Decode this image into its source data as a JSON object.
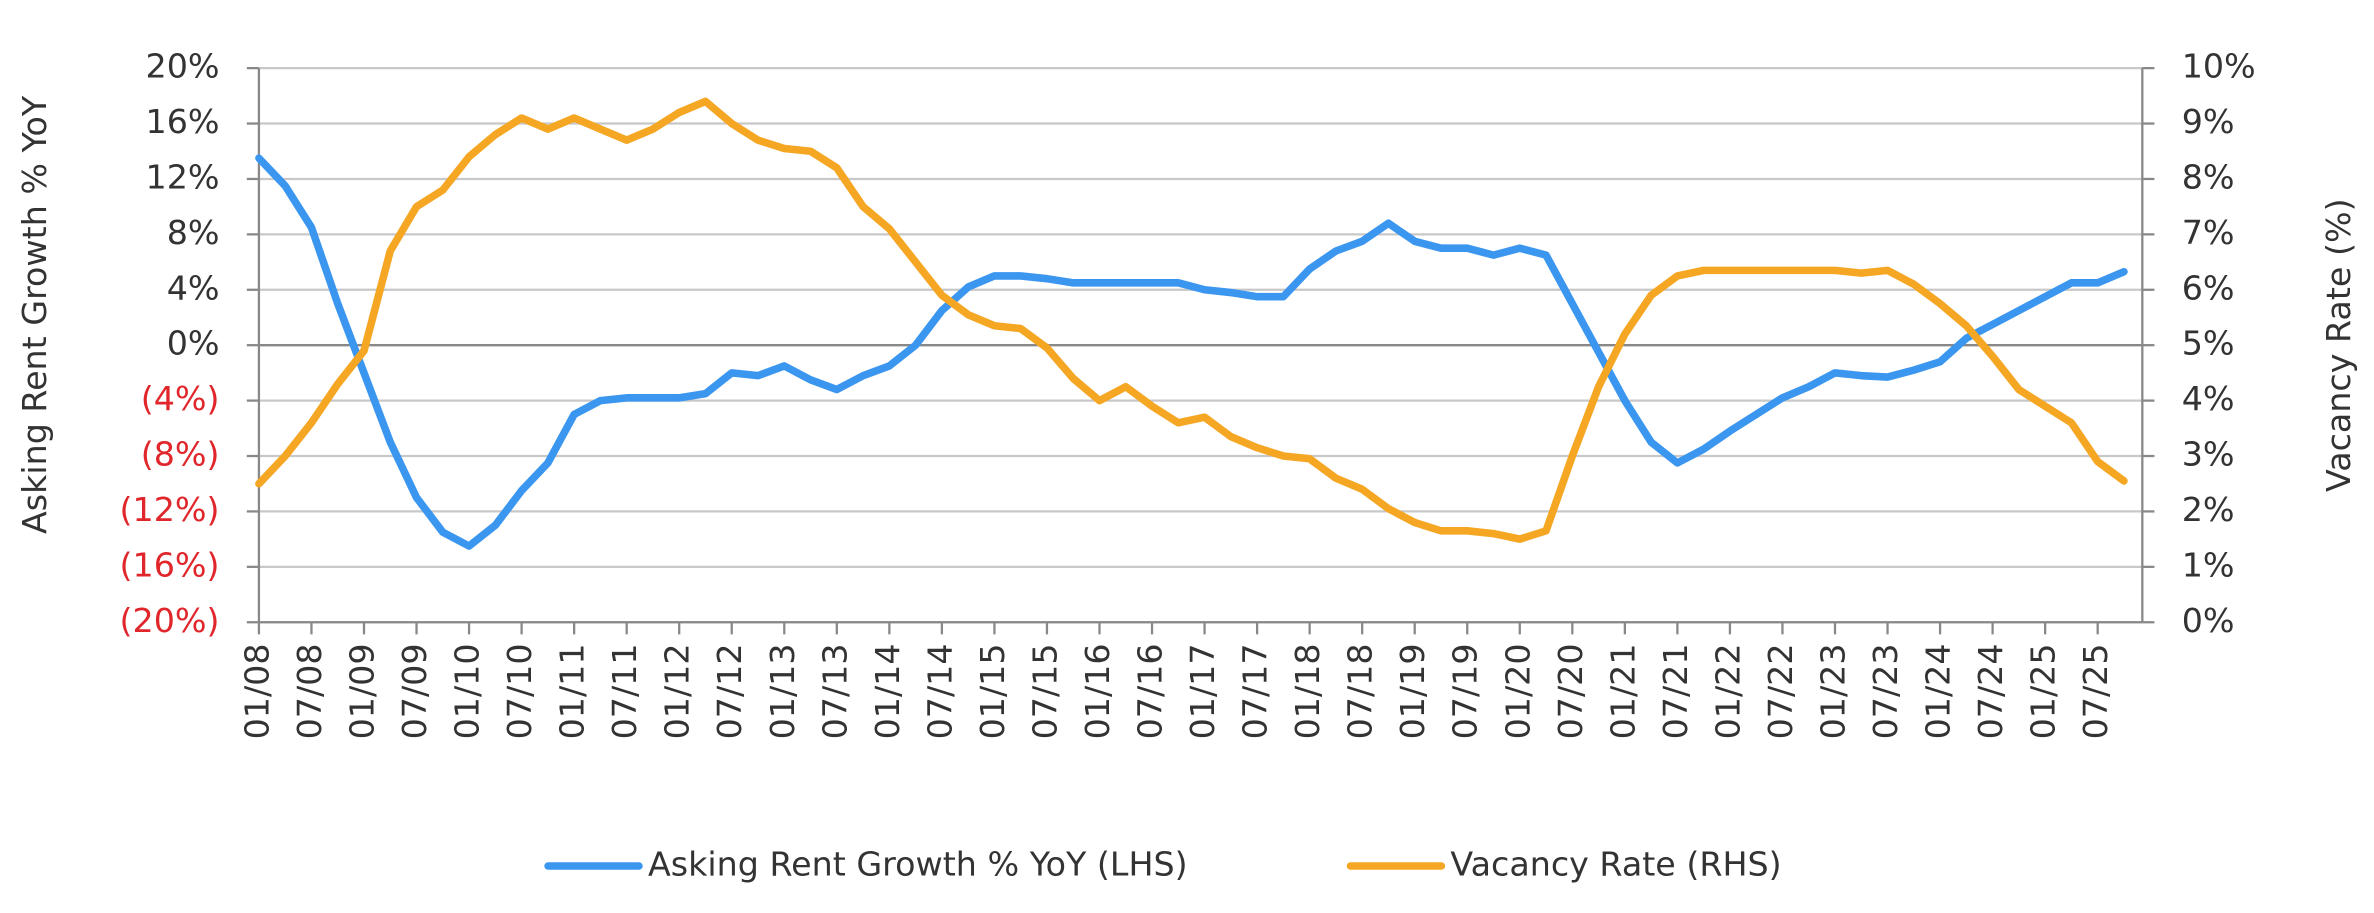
{
  "chart_data": {
    "type": "line",
    "y_label": "Asking Rent Growth % YoY",
    "y2_label": "Vacancy Rate (%)",
    "categories": [
      "01/08",
      null,
      "07/08",
      null,
      "01/09",
      null,
      "07/09",
      null,
      "01/10",
      null,
      "07/10",
      null,
      "01/11",
      null,
      "07/11",
      null,
      "01/12",
      null,
      "07/12",
      null,
      "01/13",
      null,
      "07/13",
      null,
      "01/14",
      null,
      "07/14",
      null,
      "01/15",
      null,
      "07/15",
      null,
      "01/16",
      null,
      "07/16",
      null,
      "01/17",
      null,
      "07/17",
      null,
      "01/18",
      null,
      "07/18",
      null,
      "01/19",
      null,
      "07/19",
      null,
      "01/20",
      null,
      "07/20",
      null,
      "01/21",
      null,
      "07/21",
      null,
      "01/22",
      null,
      "07/22",
      null,
      "01/23",
      null,
      "07/23",
      null,
      "01/24",
      null,
      "07/24",
      null,
      "01/25",
      null,
      "07/25",
      null
    ],
    "series": [
      {
        "name": "Asking Rent Growth % YoY (LHS)",
        "color": "#3b96f0",
        "axis": "y",
        "values": [
          13.5,
          11.5,
          8.5,
          3,
          -2,
          -7,
          -11,
          -13.5,
          -14.5,
          -13,
          -10.5,
          -8.5,
          -5,
          -4,
          -3.8,
          -3.8,
          -3.8,
          -3.5,
          -2,
          -2.2,
          -1.5,
          -2.5,
          -3.2,
          -2.2,
          -1.5,
          0,
          2.5,
          4.2,
          5,
          5,
          4.8,
          4.5,
          4.5,
          4.5,
          4.5,
          4.5,
          4,
          3.8,
          3.5,
          3.5,
          5.5,
          6.8,
          7.5,
          8.8,
          7.5,
          7,
          7,
          6.5,
          7,
          6.5,
          3,
          -0.5,
          -4,
          -7,
          -8.5,
          -7.5,
          -6.2,
          -5,
          -3.8,
          -3,
          -2,
          -2.2,
          -2.3,
          -1.8,
          -1.2,
          0.5,
          1.5,
          2.5,
          3.5,
          4.5,
          4.5,
          5.3
        ]
      },
      {
        "name": "Vacancy Rate (RHS)",
        "color": "#f5a623",
        "axis": "y2",
        "values": [
          2.5,
          3.0,
          3.6,
          4.3,
          4.9,
          6.7,
          7.5,
          7.8,
          8.4,
          8.8,
          9.1,
          8.9,
          9.1,
          8.9,
          8.7,
          8.9,
          9.2,
          9.4,
          9.0,
          8.7,
          8.55,
          8.5,
          8.2,
          7.5,
          7.1,
          6.5,
          5.9,
          5.55,
          5.35,
          5.3,
          4.95,
          4.4,
          4.0,
          4.25,
          3.9,
          3.6,
          3.7,
          3.35,
          3.15,
          3.0,
          2.95,
          2.6,
          2.4,
          2.05,
          1.8,
          1.65,
          1.65,
          1.6,
          1.5,
          1.65,
          3.0,
          4.25,
          5.2,
          5.9,
          6.25,
          6.35,
          6.35,
          6.35,
          6.35,
          6.35,
          6.35,
          6.3,
          6.35,
          6.1,
          5.75,
          5.35,
          4.8,
          4.2,
          3.9,
          3.6,
          2.9,
          2.55
        ]
      }
    ],
    "ylim": [
      -20,
      20
    ],
    "yticks": [
      {
        "value": -20,
        "label": "(20%)"
      },
      {
        "value": -16,
        "label": "(16%)"
      },
      {
        "value": -12,
        "label": "(12%)"
      },
      {
        "value": -8,
        "label": "(8%)"
      },
      {
        "value": -4,
        "label": "(4%)"
      },
      {
        "value": 0,
        "label": "0%"
      },
      {
        "value": 4,
        "label": "4%"
      },
      {
        "value": 8,
        "label": "8%"
      },
      {
        "value": 12,
        "label": "12%"
      },
      {
        "value": 16,
        "label": "16%"
      },
      {
        "value": 20,
        "label": "20%"
      }
    ],
    "y2lim": [
      0,
      10
    ],
    "y2ticks": [
      {
        "value": 0,
        "label": "0%"
      },
      {
        "value": 1,
        "label": "1%"
      },
      {
        "value": 2,
        "label": "2%"
      },
      {
        "value": 3,
        "label": "3%"
      },
      {
        "value": 4,
        "label": "4%"
      },
      {
        "value": 5,
        "label": "5%"
      },
      {
        "value": 6,
        "label": "6%"
      },
      {
        "value": 7,
        "label": "7%"
      },
      {
        "value": 8,
        "label": "8%"
      },
      {
        "value": 9,
        "label": "9%"
      },
      {
        "value": 10,
        "label": "10%"
      }
    ],
    "grid": true,
    "legend": "bottom"
  }
}
